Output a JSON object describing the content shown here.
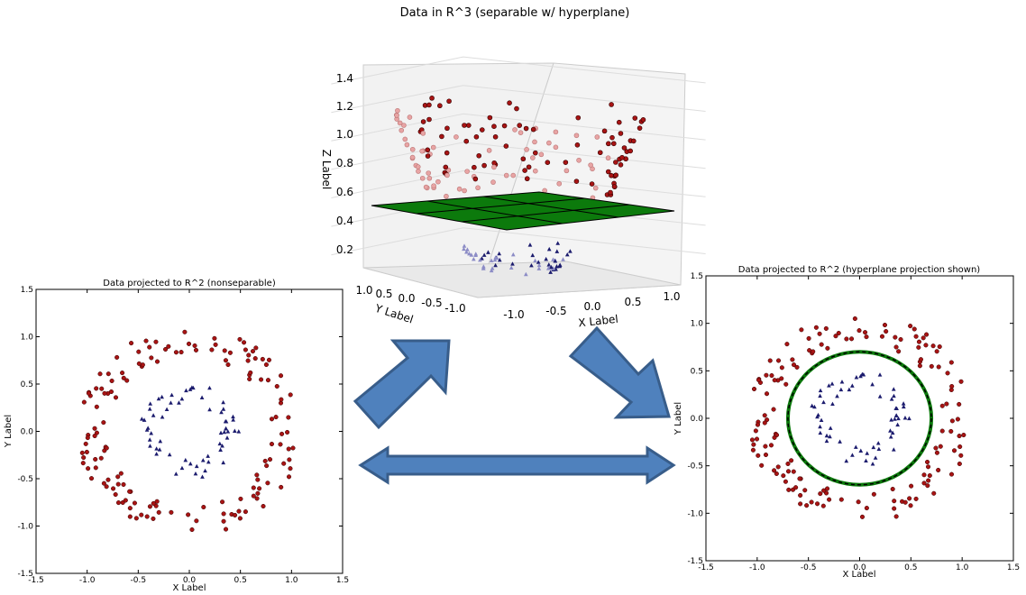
{
  "main_title": "Data in R^3 (separable w/ hyperplane)",
  "colors": {
    "outer_points": "#a81414",
    "inner_points": "#1c1c6e",
    "hyperplane": "#0c7a0c",
    "arrow_fill": "#4f81bd",
    "arrow_stroke": "#385d8a",
    "boundary_dash": "#000000"
  },
  "chart_data": [
    {
      "id": "left",
      "type": "scatter",
      "title": "Data projected to R^2 (nonseparable)",
      "xlabel": "X Label",
      "ylabel": "Y Label",
      "xlim": [
        -1.5,
        1.5
      ],
      "ylim": [
        -1.5,
        1.5
      ],
      "xticks": [
        "-1.5",
        "-1.0",
        "-0.5",
        "0.0",
        "0.5",
        "1.0",
        "1.5"
      ],
      "yticks": [
        "-1.5",
        "-1.0",
        "-0.5",
        "0.0",
        "0.5",
        "1.0",
        "1.5"
      ],
      "series": [
        {
          "marker": "circle",
          "description": "outer ring",
          "radius_range": [
            0.8,
            1.1
          ],
          "count": 150
        },
        {
          "marker": "triangle",
          "description": "inner ring",
          "radius_range": [
            0.3,
            0.5
          ],
          "count": 60
        }
      ]
    },
    {
      "id": "center",
      "type": "scatter",
      "projection": "3d",
      "zlabel": "Z Label",
      "ylabel": "Y Label",
      "xlabel": "X Label",
      "xticks": [
        "-1.0",
        "-0.5",
        "0.0",
        "0.5",
        "1.0"
      ],
      "yticks": [
        "-1.0",
        "-0.5",
        "0.0",
        "0.5",
        "1.0"
      ],
      "zticks": [
        "0.2",
        "0.4",
        "0.6",
        "0.8",
        "1.0",
        "1.2",
        "1.4"
      ],
      "hyperplane_z": 0.5,
      "series": [
        {
          "marker": "circle",
          "description": "outer ring lifted",
          "z": "x^2 + y^2"
        },
        {
          "marker": "triangle",
          "description": "inner ring lifted",
          "z": "x^2 + y^2"
        }
      ]
    },
    {
      "id": "right",
      "type": "scatter",
      "title": "Data projected to R^2 (hyperplane projection shown)",
      "xlabel": "X Label",
      "ylabel": "Y Label",
      "xlim": [
        -1.5,
        1.5
      ],
      "ylim": [
        -1.5,
        1.5
      ],
      "xticks": [
        "-1.5",
        "-1.0",
        "-0.5",
        "0.0",
        "0.5",
        "1.0",
        "1.5"
      ],
      "yticks": [
        "-1.5",
        "-1.0",
        "-0.5",
        "0.0",
        "0.5",
        "1.0",
        "1.5"
      ],
      "boundary_circle_radius": 0.7,
      "series": [
        {
          "marker": "circle",
          "description": "outer ring",
          "radius_range": [
            0.8,
            1.1
          ],
          "count": 150
        },
        {
          "marker": "triangle",
          "description": "inner ring",
          "radius_range": [
            0.3,
            0.5
          ],
          "count": 60
        }
      ]
    }
  ]
}
